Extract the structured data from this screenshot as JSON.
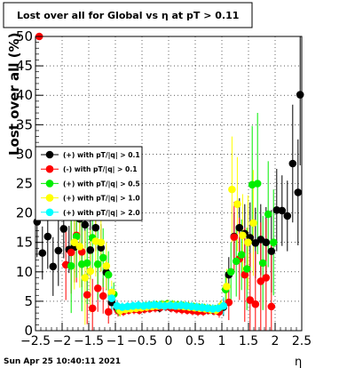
{
  "chart_data": {
    "type": "scatter",
    "title": "Lost over all for Global vs   η at pT > 0.11",
    "xlabel": "η",
    "ylabel": "Lost over all (%)",
    "xlim": [
      -2.5,
      2.5
    ],
    "ylim": [
      0,
      50
    ],
    "xticks": [
      "−2.5",
      "−2",
      "−1.5",
      "−1",
      "−0.5",
      "0",
      "0.5",
      "1",
      "1.5",
      "2",
      "2.5"
    ],
    "yticks": [
      "0",
      "5",
      "10",
      "15",
      "20",
      "25",
      "30",
      "35",
      "40",
      "45",
      "50"
    ],
    "grid": true,
    "legend_position": "left",
    "series": [
      {
        "name": "(+) with pT/|q| > 0.1",
        "color": "#000000",
        "points": [
          [
            -2.47,
            18.5,
            6
          ],
          [
            -2.37,
            13.2,
            4.5
          ],
          [
            -2.27,
            16.0,
            5.5
          ],
          [
            -2.17,
            10.9,
            5
          ],
          [
            -2.07,
            13.6,
            6
          ],
          [
            -1.97,
            17.3,
            5
          ],
          [
            -1.87,
            13.8,
            4
          ],
          [
            -1.77,
            14.2,
            6
          ],
          [
            -1.67,
            19.0,
            5
          ],
          [
            -1.57,
            18.0,
            4
          ],
          [
            -1.47,
            13.7,
            5
          ],
          [
            -1.37,
            17.5,
            4
          ],
          [
            -1.27,
            14.1,
            4
          ],
          [
            -1.17,
            9.9,
            3
          ],
          [
            -1.07,
            4.8,
            2
          ],
          [
            -0.97,
            3.8,
            1
          ],
          [
            -0.87,
            3.6,
            0.8
          ],
          [
            -0.77,
            3.7,
            0.8
          ],
          [
            -0.67,
            3.9,
            0.8
          ],
          [
            -0.57,
            4.0,
            0.8
          ],
          [
            -0.47,
            3.8,
            0.8
          ],
          [
            -0.37,
            3.9,
            0.8
          ],
          [
            -0.27,
            4.1,
            0.8
          ],
          [
            -0.17,
            3.9,
            0.8
          ],
          [
            -0.07,
            4.2,
            0.8
          ],
          [
            0.03,
            4.0,
            0.8
          ],
          [
            0.13,
            4.1,
            0.8
          ],
          [
            0.23,
            3.9,
            0.8
          ],
          [
            0.33,
            4.0,
            0.8
          ],
          [
            0.43,
            3.8,
            0.8
          ],
          [
            0.53,
            3.7,
            0.8
          ],
          [
            0.63,
            3.8,
            0.8
          ],
          [
            0.73,
            3.6,
            0.8
          ],
          [
            0.83,
            3.5,
            0.8
          ],
          [
            0.93,
            3.6,
            1
          ],
          [
            1.03,
            4.0,
            1.5
          ],
          [
            1.13,
            9.5,
            3
          ],
          [
            1.23,
            16.0,
            4
          ],
          [
            1.33,
            17.5,
            5
          ],
          [
            1.43,
            16.5,
            5
          ],
          [
            1.53,
            15.8,
            6
          ],
          [
            1.63,
            14.9,
            6
          ],
          [
            1.73,
            15.5,
            6
          ],
          [
            1.83,
            15.0,
            6
          ],
          [
            1.93,
            13.5,
            7
          ],
          [
            2.03,
            20.5,
            7
          ],
          [
            2.13,
            20.4,
            6
          ],
          [
            2.23,
            19.5,
            6
          ],
          [
            2.33,
            28.4,
            10
          ],
          [
            2.43,
            23.5,
            9
          ],
          [
            2.47,
            40.1,
            12
          ]
        ]
      },
      {
        "name": "(-) with pT/|q| > 0.1",
        "color": "#ff0000",
        "points": [
          [
            -2.43,
            50.0,
            0
          ],
          [
            -1.93,
            11.2,
            6
          ],
          [
            -1.83,
            13.3,
            7
          ],
          [
            -1.73,
            16.2,
            8
          ],
          [
            -1.63,
            13.4,
            6
          ],
          [
            -1.53,
            6.1,
            5
          ],
          [
            -1.43,
            3.8,
            5
          ],
          [
            -1.33,
            7.2,
            4
          ],
          [
            -1.23,
            5.9,
            3
          ],
          [
            -1.13,
            3.2,
            2
          ],
          [
            -0.95,
            3.4,
            1
          ],
          [
            -0.85,
            3.3,
            0.8
          ],
          [
            -0.75,
            3.5,
            0.8
          ],
          [
            -0.65,
            3.6,
            0.8
          ],
          [
            -0.55,
            3.5,
            0.8
          ],
          [
            -0.45,
            3.7,
            0.8
          ],
          [
            -0.35,
            3.8,
            0.8
          ],
          [
            -0.25,
            3.9,
            0.8
          ],
          [
            -0.15,
            4.0,
            0.8
          ],
          [
            -0.05,
            4.1,
            0.8
          ],
          [
            0.05,
            3.9,
            0.8
          ],
          [
            0.15,
            3.7,
            0.8
          ],
          [
            0.25,
            3.6,
            0.8
          ],
          [
            0.35,
            3.5,
            0.8
          ],
          [
            0.45,
            3.4,
            0.8
          ],
          [
            0.55,
            3.3,
            0.8
          ],
          [
            0.65,
            3.3,
            0.8
          ],
          [
            0.75,
            3.5,
            0.8
          ],
          [
            0.85,
            3.4,
            0.8
          ],
          [
            0.95,
            3.2,
            1
          ],
          [
            1.13,
            4.8,
            3
          ],
          [
            1.23,
            15.9,
            6
          ],
          [
            1.33,
            12.2,
            7
          ],
          [
            1.43,
            9.5,
            8
          ],
          [
            1.53,
            5.2,
            8
          ],
          [
            1.63,
            4.5,
            9
          ],
          [
            1.73,
            8.4,
            10
          ],
          [
            1.83,
            9.0,
            10
          ],
          [
            1.93,
            4.1,
            11
          ]
        ]
      },
      {
        "name": "(+) with pT/|q| > 0.5",
        "color": "#00ee00",
        "points": [
          [
            -1.83,
            11.0,
            8
          ],
          [
            -1.73,
            16.0,
            7
          ],
          [
            -1.63,
            11.3,
            8
          ],
          [
            -1.53,
            11.5,
            7
          ],
          [
            -1.43,
            15.8,
            6
          ],
          [
            -1.33,
            11.3,
            6
          ],
          [
            -1.23,
            12.4,
            5
          ],
          [
            -1.13,
            9.5,
            4
          ],
          [
            -1.03,
            6.2,
            2
          ],
          [
            -0.93,
            3.5,
            1
          ],
          [
            -0.83,
            3.7,
            0.8
          ],
          [
            -0.73,
            3.8,
            0.8
          ],
          [
            -0.63,
            3.9,
            0.8
          ],
          [
            -0.53,
            4.0,
            0.8
          ],
          [
            -0.43,
            4.1,
            0.8
          ],
          [
            -0.33,
            4.2,
            0.8
          ],
          [
            -0.23,
            4.3,
            0.8
          ],
          [
            -0.13,
            4.4,
            0.8
          ],
          [
            -0.03,
            4.5,
            0.8
          ],
          [
            0.07,
            4.4,
            0.8
          ],
          [
            0.17,
            4.3,
            0.8
          ],
          [
            0.27,
            4.2,
            0.8
          ],
          [
            0.37,
            4.1,
            0.8
          ],
          [
            0.47,
            4.0,
            0.8
          ],
          [
            0.57,
            3.9,
            0.8
          ],
          [
            0.67,
            3.8,
            0.8
          ],
          [
            0.77,
            3.7,
            0.8
          ],
          [
            0.87,
            3.6,
            0.8
          ],
          [
            0.97,
            4.0,
            1
          ],
          [
            1.07,
            7.0,
            3
          ],
          [
            1.17,
            10.0,
            5
          ],
          [
            1.27,
            11.8,
            6
          ],
          [
            1.37,
            12.9,
            6
          ],
          [
            1.47,
            10.5,
            7
          ],
          [
            1.57,
            24.8,
            10
          ],
          [
            1.67,
            25.0,
            12
          ],
          [
            1.77,
            11.5,
            8
          ],
          [
            1.87,
            19.8,
            9
          ],
          [
            1.97,
            15.0,
            9
          ]
        ]
      },
      {
        "name": "(+) with pT/|q| > 1.0",
        "color": "#ffff00",
        "points": [
          [
            -1.77,
            15.0,
            8
          ],
          [
            -1.67,
            14.3,
            7
          ],
          [
            -1.57,
            9.0,
            8
          ],
          [
            -1.47,
            10.1,
            7
          ],
          [
            -1.37,
            15.2,
            6
          ],
          [
            -1.27,
            15.0,
            5
          ],
          [
            -1.17,
            11.0,
            4
          ],
          [
            -1.07,
            6.5,
            2
          ],
          [
            -0.91,
            3.4,
            1
          ],
          [
            -0.81,
            3.6,
            0.8
          ],
          [
            -0.71,
            3.7,
            0.8
          ],
          [
            -0.61,
            3.8,
            0.8
          ],
          [
            -0.51,
            3.9,
            0.8
          ],
          [
            -0.41,
            4.0,
            0.8
          ],
          [
            -0.31,
            4.1,
            0.8
          ],
          [
            -0.21,
            4.2,
            0.8
          ],
          [
            -0.11,
            4.3,
            0.8
          ],
          [
            -0.01,
            4.4,
            0.8
          ],
          [
            0.09,
            4.3,
            0.8
          ],
          [
            0.19,
            4.2,
            0.8
          ],
          [
            0.29,
            4.1,
            0.8
          ],
          [
            0.39,
            4.0,
            0.8
          ],
          [
            0.49,
            3.9,
            0.8
          ],
          [
            0.59,
            3.8,
            0.8
          ],
          [
            0.69,
            3.7,
            0.8
          ],
          [
            0.79,
            3.6,
            0.8
          ],
          [
            0.89,
            3.5,
            0.8
          ],
          [
            0.99,
            4.2,
            1
          ],
          [
            1.09,
            7.5,
            3
          ],
          [
            1.19,
            24.0,
            9
          ],
          [
            1.29,
            21.5,
            8
          ],
          [
            1.39,
            16.2,
            7
          ],
          [
            1.49,
            15.0,
            8
          ],
          [
            1.59,
            18.3,
            9
          ]
        ]
      },
      {
        "name": "(+) with pT/|q| > 2.0",
        "color": "#00ffff",
        "points": [
          [
            -1.07,
            5.5,
            2
          ],
          [
            -0.97,
            4.2,
            1
          ],
          [
            -0.87,
            4.0,
            0.8
          ],
          [
            -0.77,
            4.1,
            0.8
          ],
          [
            -0.67,
            4.2,
            0.8
          ],
          [
            -0.57,
            4.3,
            0.8
          ],
          [
            -0.47,
            4.2,
            0.8
          ],
          [
            -0.37,
            4.3,
            0.8
          ],
          [
            -0.27,
            4.4,
            0.8
          ],
          [
            -0.17,
            4.3,
            0.8
          ],
          [
            -0.07,
            4.2,
            0.8
          ],
          [
            0.03,
            4.3,
            0.8
          ],
          [
            0.13,
            4.2,
            0.8
          ],
          [
            0.23,
            4.3,
            0.8
          ],
          [
            0.33,
            4.2,
            0.8
          ],
          [
            0.43,
            4.1,
            0.8
          ],
          [
            0.53,
            4.0,
            0.8
          ],
          [
            0.63,
            3.9,
            0.8
          ],
          [
            0.73,
            3.8,
            0.8
          ],
          [
            0.83,
            3.7,
            0.8
          ],
          [
            0.93,
            3.8,
            0.8
          ],
          [
            1.03,
            4.2,
            1.5
          ]
        ]
      }
    ]
  },
  "footer": {
    "timestamp": "Sun Apr 25 10:40:11 2021"
  }
}
